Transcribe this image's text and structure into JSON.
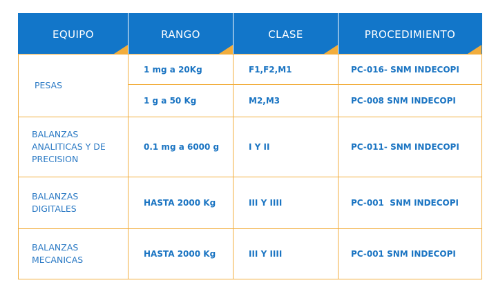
{
  "table": {
    "headers": [
      "EQUIPO",
      "RANGO",
      "CLASE",
      "PROCEDIMIENTO"
    ],
    "rows": [
      {
        "equipo": "PESAS",
        "items": [
          {
            "rango": "1 mg a 20Kg",
            "clase": "F1,F2,M1",
            "procedimiento": "PC-016- SNM INDECOPI"
          },
          {
            "rango": "1 g a 50 Kg",
            "clase": "M2,M3",
            "procedimiento": "PC-008 SNM INDECOPI"
          }
        ]
      },
      {
        "equipo_lines": [
          "BALANZAS",
          "ANALITICAS Y DE",
          "PRECISION"
        ],
        "rango": "0.1 mg a 6000 g",
        "clase": "I Y II",
        "procedimiento": "PC-011- SNM INDECOPI"
      },
      {
        "equipo_lines": [
          "BALANZAS",
          "DIGITALES"
        ],
        "rango": "HASTA 2000 Kg",
        "clase": "III Y IIII",
        "procedimiento": "PC-001  SNM INDECOPI"
      },
      {
        "equipo_lines": [
          "BALANZAS",
          "MECANICAS"
        ],
        "rango": "HASTA 2000 Kg",
        "clase": "III Y IIII",
        "procedimiento": "PC-001 SNM INDECOPI"
      }
    ]
  },
  "colors": {
    "header_bg": "#1276c9",
    "accent": "#f2ad3c",
    "text": "#1a74c2"
  }
}
